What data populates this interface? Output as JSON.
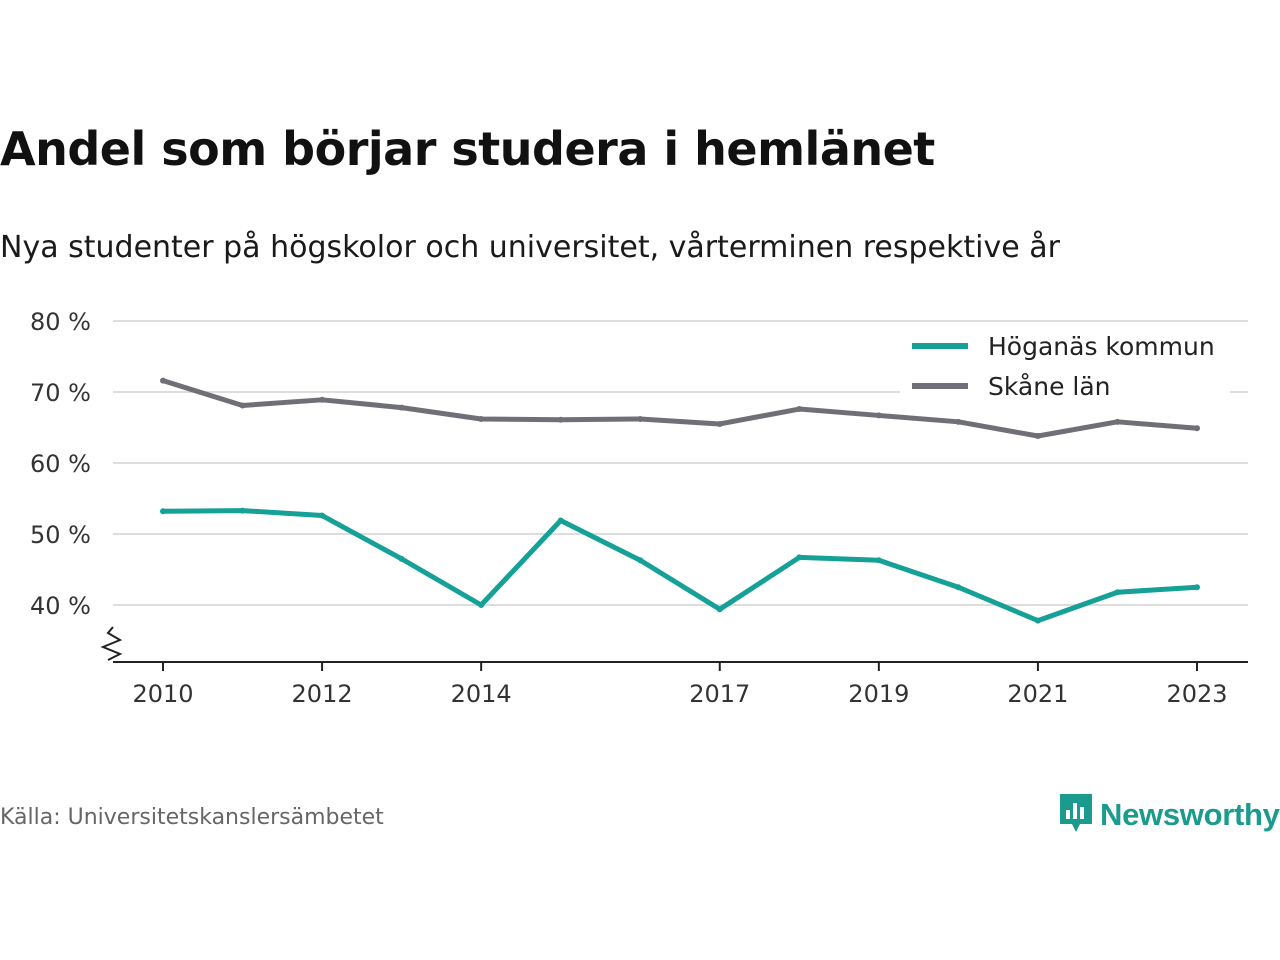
{
  "title": "Andel som börjar studera i hemlänet",
  "subtitle": "Nya studenter på högskolor och universitet, vårterminen respektive år",
  "source": "Källa: Universitetskanslersämbetet",
  "brand": {
    "name": "Newsworthy",
    "icon": "newsworthy-logo-icon",
    "color": "#1a9b8e"
  },
  "chart_data": {
    "type": "line",
    "x": [
      2010,
      2011,
      2012,
      2013,
      2014,
      2015,
      2016,
      2017,
      2018,
      2019,
      2020,
      2021,
      2022,
      2023
    ],
    "x_ticks": [
      "2010",
      "2012",
      "2014",
      "2017",
      "2019",
      "2021",
      "2023"
    ],
    "y_ticks": [
      "40 %",
      "50 %",
      "60 %",
      "70 %",
      "80 %"
    ],
    "ylim": [
      32,
      80
    ],
    "y_axis_break": true,
    "grid": "horizontal",
    "legend_position": "top-right",
    "series": [
      {
        "name": "Höganäs kommun",
        "color": "#15a197",
        "values": [
          53.2,
          53.3,
          52.6,
          46.5,
          40.0,
          51.9,
          46.3,
          39.4,
          46.7,
          46.3,
          42.5,
          37.8,
          41.8,
          42.5
        ]
      },
      {
        "name": "Skåne län",
        "color": "#706f77",
        "values": [
          71.6,
          68.1,
          68.9,
          67.8,
          66.2,
          66.1,
          66.2,
          65.5,
          67.6,
          66.7,
          65.8,
          63.8,
          65.8,
          64.9
        ]
      }
    ]
  }
}
